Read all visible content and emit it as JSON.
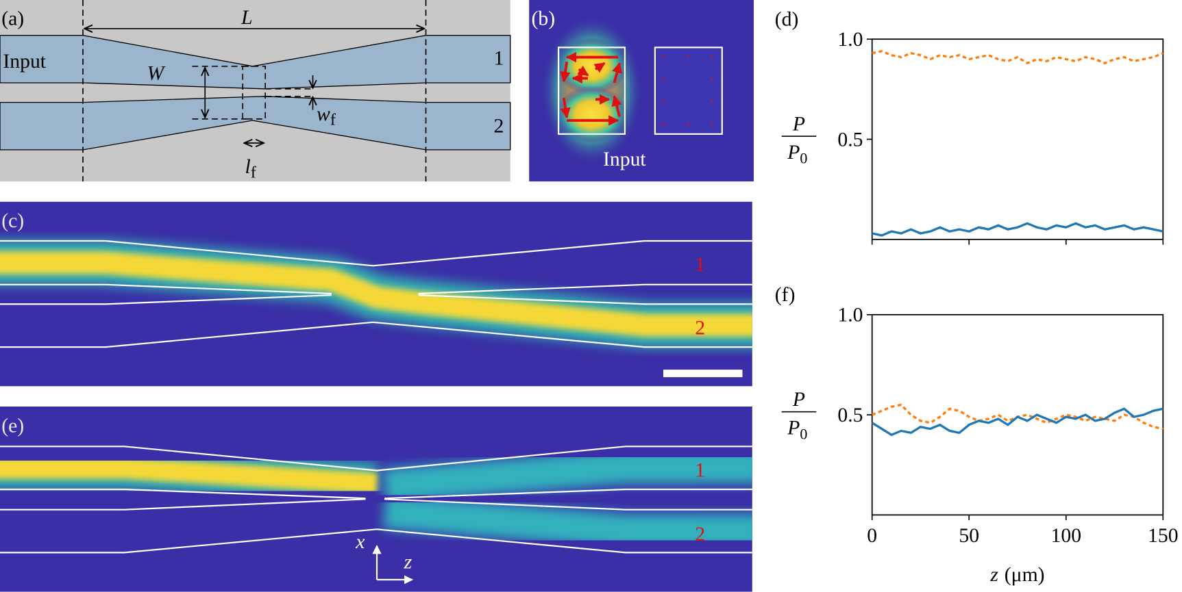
{
  "panels": {
    "a": {
      "label": "(a)",
      "input": "Input",
      "length": "L",
      "width": "W",
      "fin_length": {
        "main": "l",
        "sub": "f"
      },
      "fin_width": {
        "main": "w",
        "sub": "f"
      },
      "port1": "1",
      "port2": "2"
    },
    "b": {
      "label": "(b)",
      "input": "Input"
    },
    "c": {
      "label": "(c)",
      "port1": "1",
      "port2": "2"
    },
    "e": {
      "label": "(e)",
      "port1": "1",
      "port2": "2",
      "axis_x": "x",
      "axis_z": "z"
    }
  },
  "chart_data": [
    {
      "type": "line",
      "label": "(d)",
      "ylabel": {
        "numerator": "P",
        "denominator": {
          "main": "P",
          "sub": "0"
        }
      },
      "x": [
        0,
        5,
        10,
        15,
        20,
        25,
        30,
        35,
        40,
        45,
        50,
        55,
        60,
        65,
        70,
        75,
        80,
        85,
        90,
        95,
        100,
        105,
        110,
        115,
        120,
        125,
        130,
        135,
        140,
        145,
        150
      ],
      "xlim": [
        0,
        150
      ],
      "xticks": [
        0,
        50,
        100,
        150
      ],
      "show_xtick_labels": false,
      "ylim": [
        0,
        1
      ],
      "yticks": [
        0.5,
        {
          "value": 1,
          "label": "1.0"
        }
      ],
      "series": [
        {
          "color": "#ff7f0e",
          "linestyle": "dotted",
          "values": [
            0.93,
            0.94,
            0.92,
            0.91,
            0.93,
            0.92,
            0.9,
            0.92,
            0.91,
            0.92,
            0.9,
            0.91,
            0.92,
            0.9,
            0.89,
            0.91,
            0.88,
            0.9,
            0.89,
            0.91,
            0.9,
            0.89,
            0.91,
            0.9,
            0.88,
            0.9,
            0.91,
            0.89,
            0.9,
            0.91,
            0.93
          ]
        },
        {
          "color": "#1f77b4",
          "linestyle": "solid",
          "values": [
            0.03,
            0.02,
            0.04,
            0.03,
            0.05,
            0.03,
            0.04,
            0.06,
            0.04,
            0.05,
            0.04,
            0.06,
            0.05,
            0.07,
            0.05,
            0.06,
            0.08,
            0.06,
            0.05,
            0.07,
            0.06,
            0.08,
            0.06,
            0.07,
            0.05,
            0.06,
            0.07,
            0.05,
            0.06,
            0.05,
            0.04
          ]
        }
      ]
    },
    {
      "type": "line",
      "label": "(f)",
      "ylabel": {
        "numerator": "P",
        "denominator": {
          "main": "P",
          "sub": "0"
        }
      },
      "xlabel": {
        "symbol": "z",
        "unit": "(μm)"
      },
      "x": [
        0,
        5,
        10,
        15,
        20,
        25,
        30,
        35,
        40,
        45,
        50,
        55,
        60,
        65,
        70,
        75,
        80,
        85,
        90,
        95,
        100,
        105,
        110,
        115,
        120,
        125,
        130,
        135,
        140,
        145,
        150
      ],
      "xlim": [
        0,
        150
      ],
      "xticks": [
        0,
        50,
        100,
        150
      ],
      "show_xtick_labels": true,
      "ylim": [
        0,
        1
      ],
      "yticks": [
        0.5,
        {
          "value": 1,
          "label": "1.0"
        }
      ],
      "series": [
        {
          "color": "#ff7f0e",
          "linestyle": "dotted",
          "values": [
            0.5,
            0.52,
            0.54,
            0.55,
            0.5,
            0.47,
            0.46,
            0.49,
            0.53,
            0.52,
            0.49,
            0.47,
            0.48,
            0.5,
            0.47,
            0.49,
            0.5,
            0.48,
            0.46,
            0.48,
            0.5,
            0.49,
            0.47,
            0.49,
            0.48,
            0.47,
            0.5,
            0.49,
            0.46,
            0.44,
            0.43
          ]
        },
        {
          "color": "#1f77b4",
          "linestyle": "solid",
          "values": [
            0.46,
            0.43,
            0.4,
            0.42,
            0.41,
            0.44,
            0.43,
            0.45,
            0.42,
            0.41,
            0.45,
            0.47,
            0.46,
            0.48,
            0.45,
            0.49,
            0.47,
            0.5,
            0.48,
            0.46,
            0.49,
            0.48,
            0.5,
            0.47,
            0.48,
            0.51,
            0.53,
            0.49,
            0.5,
            0.52,
            0.53
          ]
        }
      ]
    }
  ]
}
